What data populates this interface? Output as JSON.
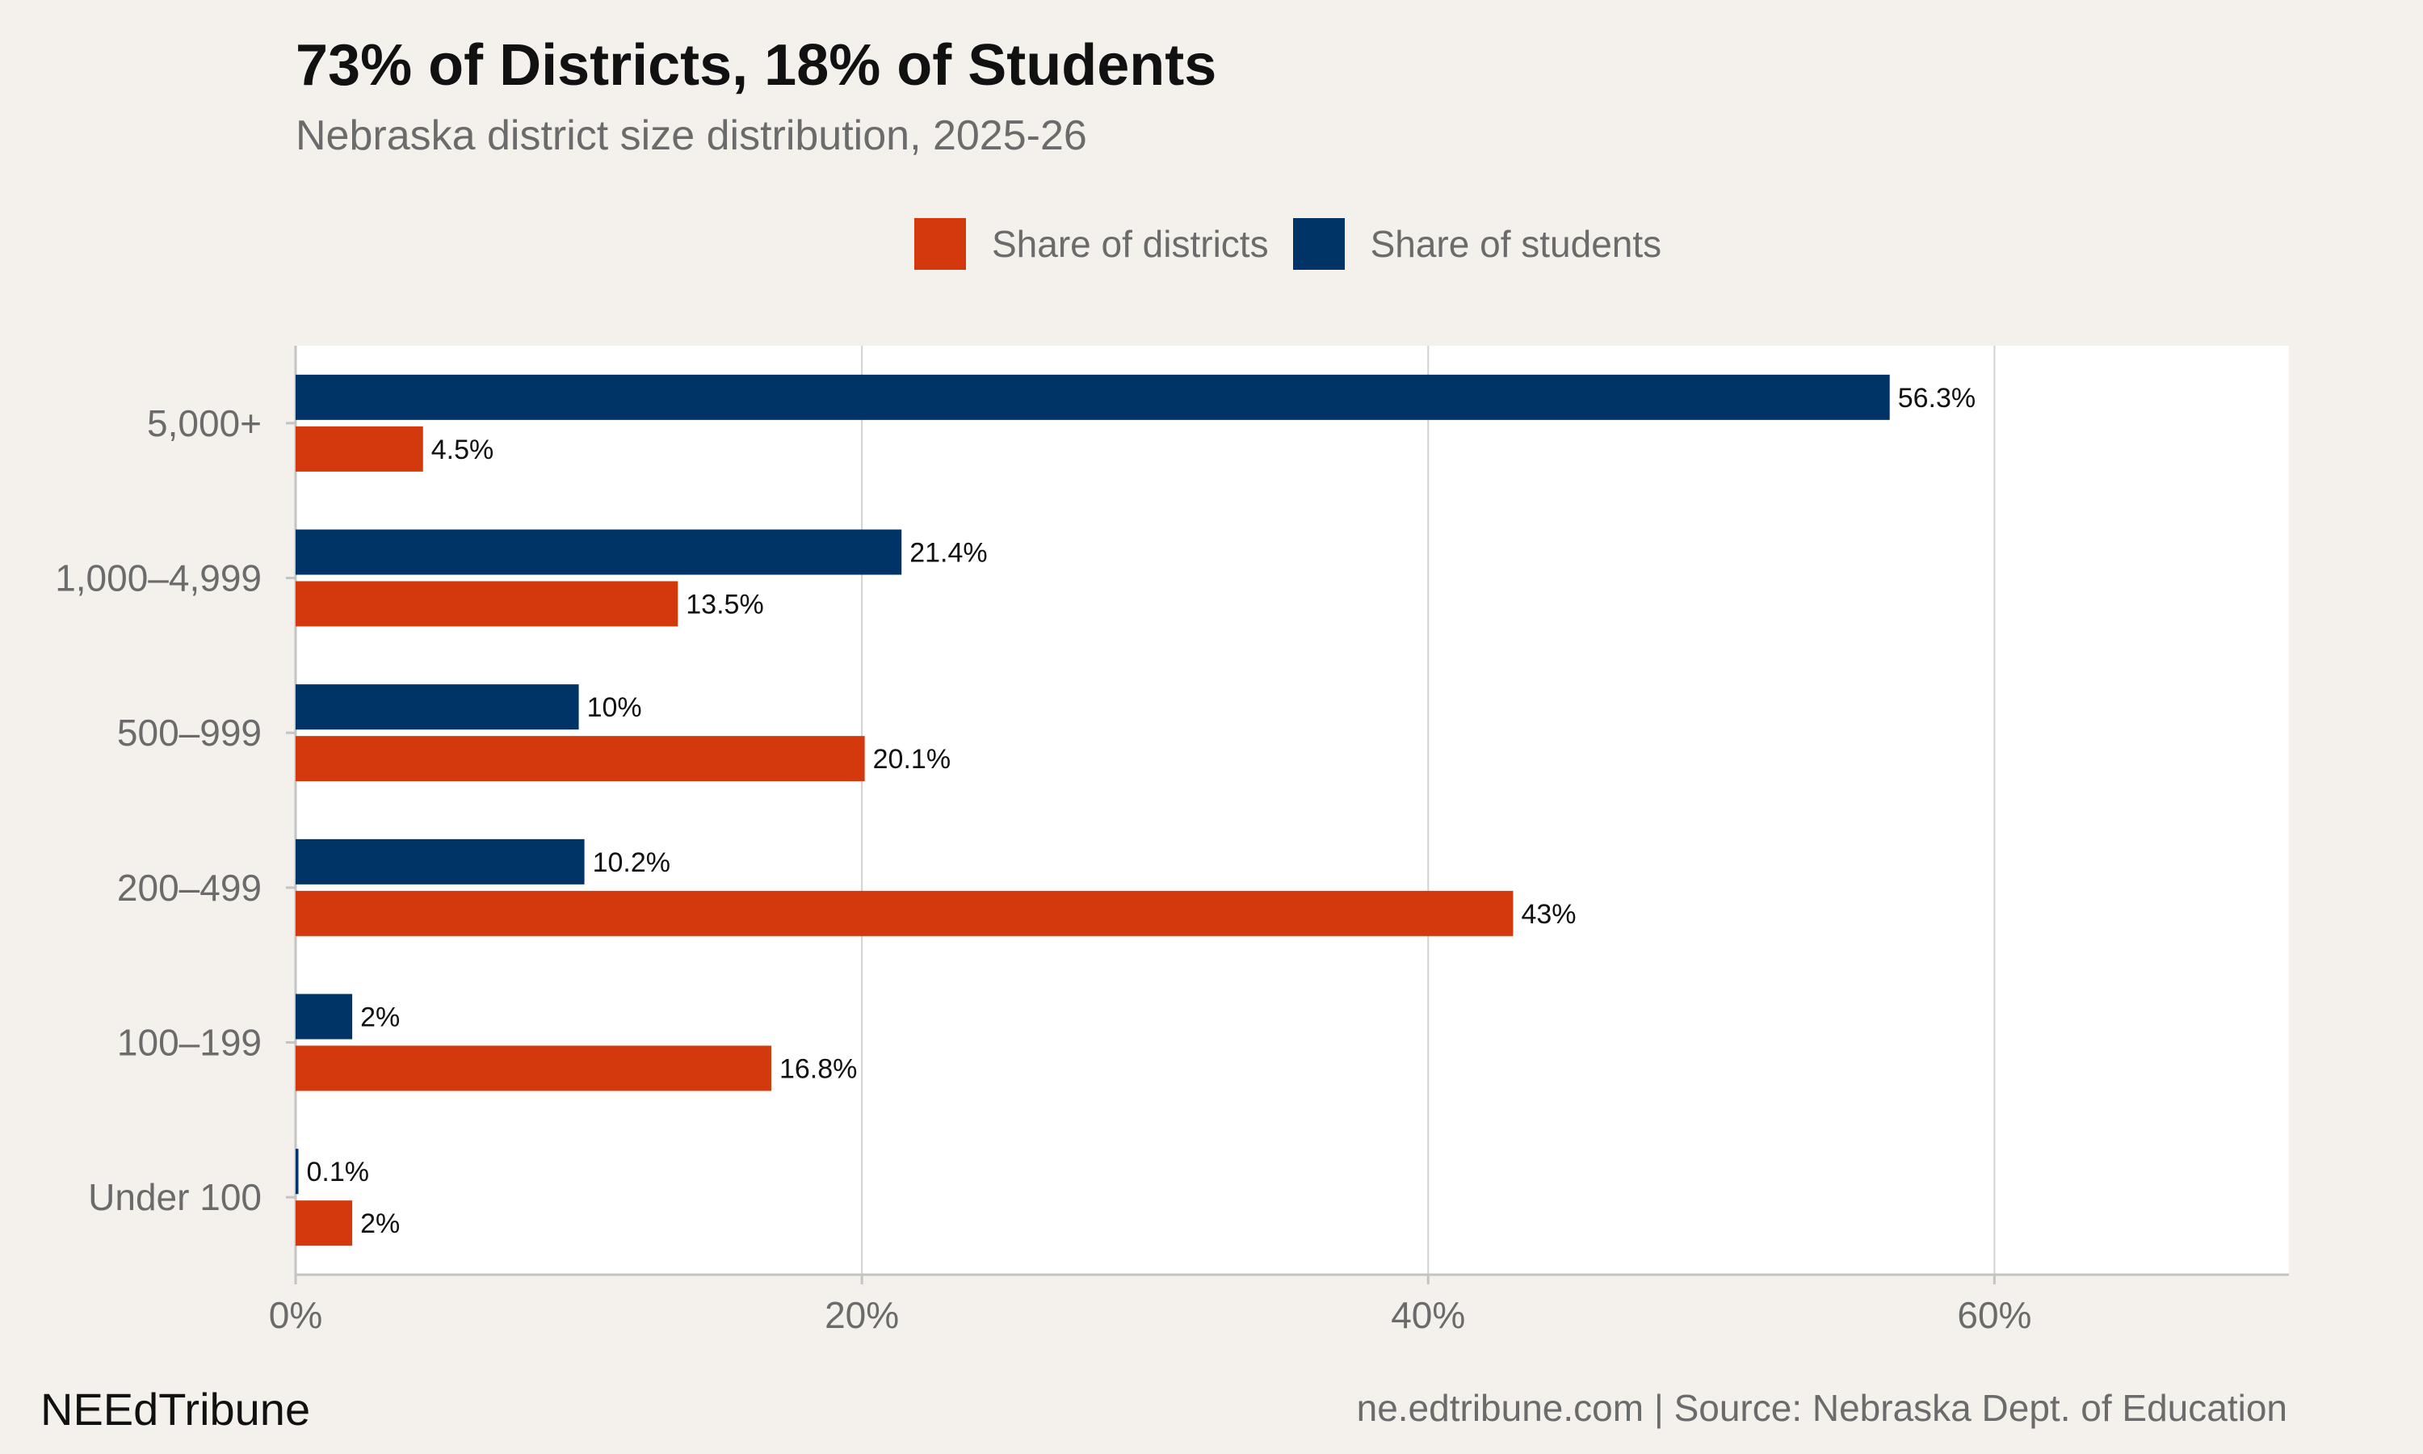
{
  "chart_data": {
    "type": "bar",
    "orientation": "horizontal",
    "title": "73% of Districts, 18% of Students",
    "subtitle": "Nebraska district size distribution, 2025-26",
    "categories": [
      "5,000+",
      "1,000–4,999",
      "500–999",
      "200–499",
      "100–199",
      "Under 100"
    ],
    "series": [
      {
        "name": "Share of students",
        "color": "#003366",
        "values": [
          56.3,
          21.4,
          10,
          10.2,
          2,
          0.1
        ],
        "labels": [
          "56.3%",
          "21.4%",
          "10%",
          "10.2%",
          "2%",
          "0.1%"
        ]
      },
      {
        "name": "Share of districts",
        "color": "#d4380d",
        "values": [
          4.5,
          13.5,
          20.1,
          43,
          16.8,
          2
        ],
        "labels": [
          "4.5%",
          "13.5%",
          "20.1%",
          "43%",
          "16.8%",
          "2%"
        ]
      }
    ],
    "legend_order": [
      "Share of districts",
      "Share of students"
    ],
    "xlim": [
      0,
      70.4
    ],
    "xticks": [
      0,
      20,
      40,
      60
    ],
    "xtick_labels": [
      "0%",
      "20%",
      "40%",
      "60%"
    ],
    "xlabel": "",
    "ylabel": "",
    "grid": "vertical",
    "legend_position": "top"
  },
  "footer": {
    "brand": "NEEdTribune",
    "source": "ne.edtribune.com | Source: Nebraska Dept. of Education"
  }
}
